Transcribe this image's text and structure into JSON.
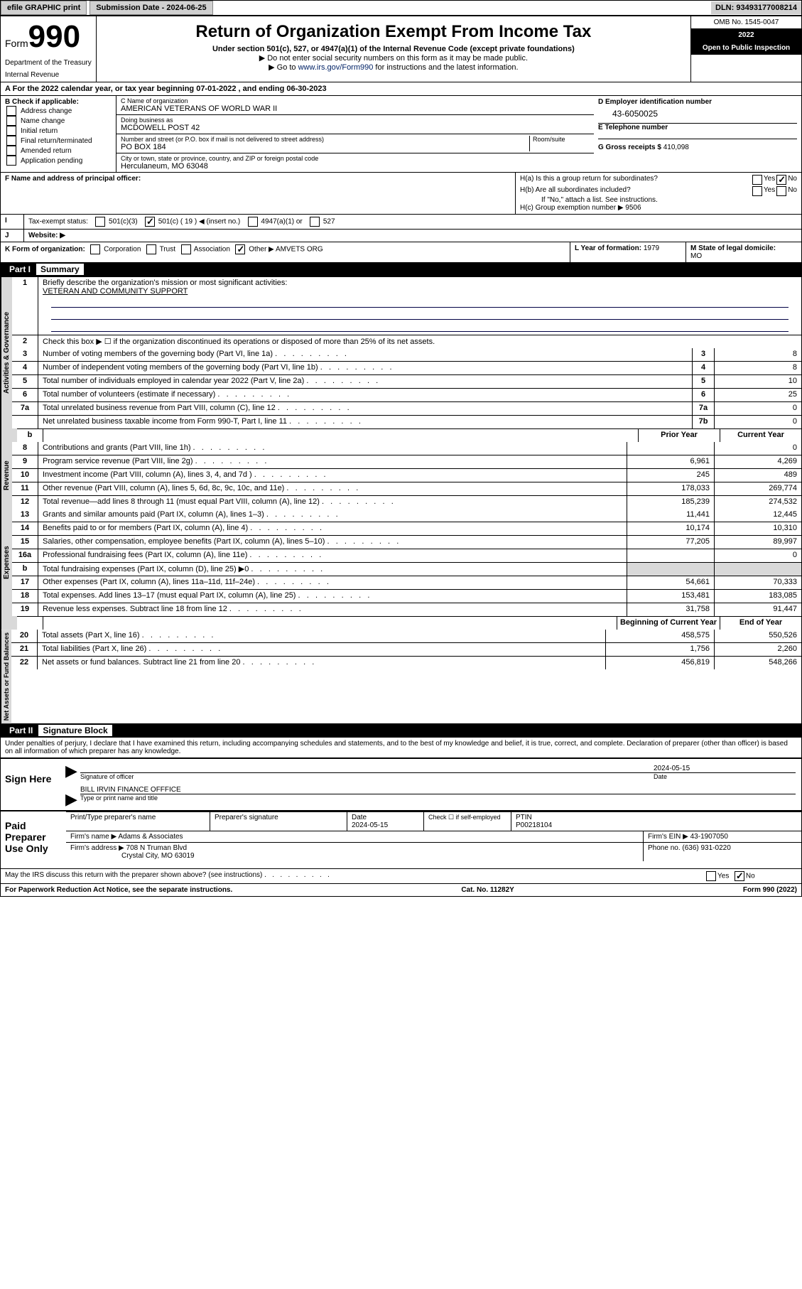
{
  "topbar": {
    "efile": "efile GRAPHIC print",
    "subdate_label": "Submission Date - ",
    "subdate": "2024-06-25",
    "dln_label": "DLN: ",
    "dln": "93493177008214"
  },
  "header": {
    "form": "Form",
    "num": "990",
    "title": "Return of Organization Exempt From Income Tax",
    "sub1": "Under section 501(c), 527, or 4947(a)(1) of the Internal Revenue Code (except private foundations)",
    "sub2": "▶ Do not enter social security numbers on this form as it may be made public.",
    "sub3a": "▶ Go to ",
    "sub3link": "www.irs.gov/Form990",
    "sub3b": " for instructions and the latest information.",
    "dept": "Department of the Treasury",
    "irs": "Internal Revenue",
    "omb": "OMB No. 1545-0047",
    "year": "2022",
    "open": "Open to Public Inspection"
  },
  "a": {
    "text": "For the 2022 calendar year, or tax year beginning 07-01-2022    , and ending 06-30-2023"
  },
  "b": {
    "label": "B Check if applicable:",
    "items": [
      "Address change",
      "Name change",
      "Initial return",
      "Final return/terminated",
      "Amended return",
      "Application pending"
    ]
  },
  "c": {
    "name_label": "C Name of organization",
    "name": "AMERICAN VETERANS OF WORLD WAR II",
    "dba_label": "Doing business as",
    "dba": "MCDOWELL POST 42",
    "addr_label": "Number and street (or P.O. box if mail is not delivered to street address)",
    "room_label": "Room/suite",
    "addr": "PO BOX 184",
    "city_label": "City or town, state or province, country, and ZIP or foreign postal code",
    "city": "Herculaneum, MO  63048"
  },
  "d": {
    "label": "D Employer identification number",
    "value": "43-6050025"
  },
  "e": {
    "label": "E Telephone number",
    "value": ""
  },
  "g": {
    "label": "G Gross receipts $ ",
    "value": "410,098"
  },
  "f": {
    "label": "F  Name and address of principal officer:"
  },
  "h": {
    "ha": "H(a)  Is this a group return for subordinates?",
    "hb": "H(b)  Are all subordinates included?",
    "hbnote": "If \"No,\" attach a list. See instructions.",
    "hc": "H(c)  Group exemption number ▶   9506",
    "yes": "Yes",
    "no": "No"
  },
  "i": {
    "label": "Tax-exempt status:",
    "opts": [
      "501(c)(3)",
      "501(c) ( 19 ) ◀ (insert no.)",
      "4947(a)(1) or",
      "527"
    ]
  },
  "j": {
    "label": "Website: ▶"
  },
  "k": {
    "label": "K Form of organization:",
    "opts": [
      "Corporation",
      "Trust",
      "Association",
      "Other ▶"
    ],
    "other": "AMVETS ORG"
  },
  "l": {
    "label": "L Year of formation: ",
    "value": "1979"
  },
  "m": {
    "label": "M State of legal domicile:",
    "value": "MO"
  },
  "part1": {
    "hdr": "Part I",
    "title": "Summary",
    "line1_label": "Briefly describe the organization's mission or most significant activities:",
    "line1_val": "VETERAN AND COMMUNITY SUPPORT",
    "line2": "Check this box ▶ ☐  if the organization discontinued its operations or disposed of more than 25% of its net assets.",
    "side_gov": "Activities & Governance",
    "side_rev": "Revenue",
    "side_exp": "Expenses",
    "side_net": "Net Assets or Fund Balances",
    "gov_rows": [
      {
        "n": "3",
        "d": "Number of voting members of the governing body (Part VI, line 1a)",
        "box": "3",
        "v": "8"
      },
      {
        "n": "4",
        "d": "Number of independent voting members of the governing body (Part VI, line 1b)",
        "box": "4",
        "v": "8"
      },
      {
        "n": "5",
        "d": "Total number of individuals employed in calendar year 2022 (Part V, line 2a)",
        "box": "5",
        "v": "10"
      },
      {
        "n": "6",
        "d": "Total number of volunteers (estimate if necessary)",
        "box": "6",
        "v": "25"
      },
      {
        "n": "7a",
        "d": "Total unrelated business revenue from Part VIII, column (C), line 12",
        "box": "7a",
        "v": "0"
      },
      {
        "n": "",
        "d": "Net unrelated business taxable income from Form 990-T, Part I, line 11",
        "box": "7b",
        "v": "0"
      }
    ],
    "hdr_prior": "Prior Year",
    "hdr_curr": "Current Year",
    "rev_rows": [
      {
        "n": "8",
        "d": "Contributions and grants (Part VIII, line 1h)",
        "p": "",
        "c": "0"
      },
      {
        "n": "9",
        "d": "Program service revenue (Part VIII, line 2g)",
        "p": "6,961",
        "c": "4,269"
      },
      {
        "n": "10",
        "d": "Investment income (Part VIII, column (A), lines 3, 4, and 7d )",
        "p": "245",
        "c": "489"
      },
      {
        "n": "11",
        "d": "Other revenue (Part VIII, column (A), lines 5, 6d, 8c, 9c, 10c, and 11e)",
        "p": "178,033",
        "c": "269,774"
      },
      {
        "n": "12",
        "d": "Total revenue—add lines 8 through 11 (must equal Part VIII, column (A), line 12)",
        "p": "185,239",
        "c": "274,532"
      }
    ],
    "exp_rows": [
      {
        "n": "13",
        "d": "Grants and similar amounts paid (Part IX, column (A), lines 1–3)",
        "p": "11,441",
        "c": "12,445"
      },
      {
        "n": "14",
        "d": "Benefits paid to or for members (Part IX, column (A), line 4)",
        "p": "10,174",
        "c": "10,310"
      },
      {
        "n": "15",
        "d": "Salaries, other compensation, employee benefits (Part IX, column (A), lines 5–10)",
        "p": "77,205",
        "c": "89,997"
      },
      {
        "n": "16a",
        "d": "Professional fundraising fees (Part IX, column (A), line 11e)",
        "p": "",
        "c": "0"
      },
      {
        "n": "b",
        "d": "Total fundraising expenses (Part IX, column (D), line 25) ▶0",
        "p": "shade",
        "c": "shade"
      },
      {
        "n": "17",
        "d": "Other expenses (Part IX, column (A), lines 11a–11d, 11f–24e)",
        "p": "54,661",
        "c": "70,333"
      },
      {
        "n": "18",
        "d": "Total expenses. Add lines 13–17 (must equal Part IX, column (A), line 25)",
        "p": "153,481",
        "c": "183,085"
      },
      {
        "n": "19",
        "d": "Revenue less expenses. Subtract line 18 from line 12",
        "p": "31,758",
        "c": "91,447"
      }
    ],
    "net_hdr_begin": "Beginning of Current Year",
    "net_hdr_end": "End of Year",
    "net_rows": [
      {
        "n": "20",
        "d": "Total assets (Part X, line 16)",
        "p": "458,575",
        "c": "550,526"
      },
      {
        "n": "21",
        "d": "Total liabilities (Part X, line 26)",
        "p": "1,756",
        "c": "2,260"
      },
      {
        "n": "22",
        "d": "Net assets or fund balances. Subtract line 21 from line 20",
        "p": "456,819",
        "c": "548,266"
      }
    ]
  },
  "part2": {
    "hdr": "Part II",
    "title": "Signature Block",
    "decl": "Under penalties of perjury, I declare that I have examined this return, including accompanying schedules and statements, and to the best of my knowledge and belief, it is true, correct, and complete. Declaration of preparer (other than officer) is based on all information of which preparer has any knowledge.",
    "sign": "Sign Here",
    "sigoff": "Signature of officer",
    "date": "Date",
    "datev": "2024-05-15",
    "officer": "BILL IRVIN FINANCE OFFFICE",
    "nametype": "Type or print name and title",
    "paid": "Paid Preparer Use Only",
    "prepname_label": "Print/Type preparer's name",
    "prepsig_label": "Preparer's signature",
    "prepdate_label": "Date",
    "prepdate_v": "2024-05-15",
    "check_label": "Check ☐ if self-employed",
    "ptin_label": "PTIN",
    "ptin": "P00218104",
    "firmname_label": "Firm's name   ▶ ",
    "firmname": "Adams & Associates",
    "firmein_label": "Firm's EIN ▶ ",
    "firmein": "43-1907050",
    "firmaddr_label": "Firm's address ▶ ",
    "firmaddr1": "708 N Truman Blvd",
    "firmaddr2": "Crystal City, MO  63019",
    "phone_label": "Phone no. ",
    "phone": "(636) 931-0220",
    "may": "May the IRS discuss this return with the preparer shown above? (see instructions)",
    "yes": "Yes",
    "no": "No"
  },
  "footer": {
    "pra": "For Paperwork Reduction Act Notice, see the separate instructions.",
    "cat": "Cat. No. 11282Y",
    "form": "Form 990 (2022)"
  }
}
